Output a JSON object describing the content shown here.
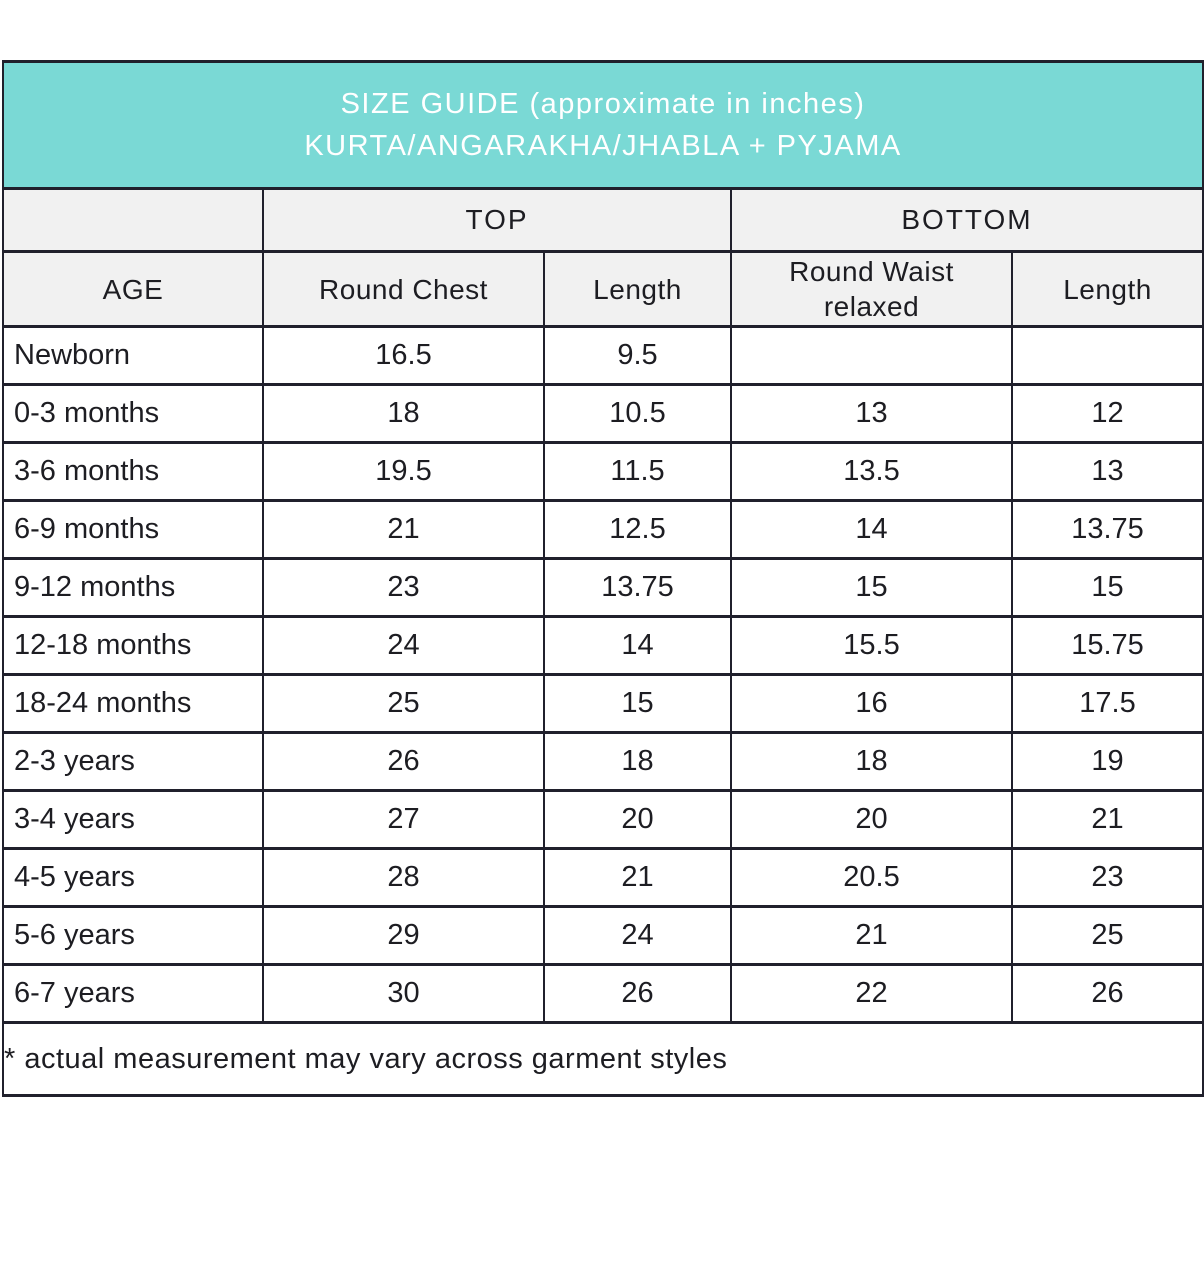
{
  "header": {
    "title_line1": "SIZE GUIDE (approximate in inches)",
    "title_line2": "KURTA/ANGARAKHA/JHABLA + PYJAMA"
  },
  "columns": {
    "group_top": "TOP",
    "group_bottom": "BOTTOM",
    "age": "AGE",
    "round_chest": "Round Chest",
    "top_length": "Length",
    "round_waist": "Round Waist relaxed",
    "bottom_length": "Length"
  },
  "rows": [
    {
      "age": "Newborn",
      "round_chest": "16.5",
      "top_length": "9.5",
      "round_waist": "",
      "bottom_length": ""
    },
    {
      "age": "0-3 months",
      "round_chest": "18",
      "top_length": "10.5",
      "round_waist": "13",
      "bottom_length": "12"
    },
    {
      "age": "3-6 months",
      "round_chest": "19.5",
      "top_length": "11.5",
      "round_waist": "13.5",
      "bottom_length": "13"
    },
    {
      "age": "6-9 months",
      "round_chest": "21",
      "top_length": "12.5",
      "round_waist": "14",
      "bottom_length": "13.75"
    },
    {
      "age": "9-12 months",
      "round_chest": "23",
      "top_length": "13.75",
      "round_waist": "15",
      "bottom_length": "15"
    },
    {
      "age": "12-18 months",
      "round_chest": "24",
      "top_length": "14",
      "round_waist": "15.5",
      "bottom_length": "15.75"
    },
    {
      "age": "18-24 months",
      "round_chest": "25",
      "top_length": "15",
      "round_waist": "16",
      "bottom_length": "17.5"
    },
    {
      "age": "2-3 years",
      "round_chest": "26",
      "top_length": "18",
      "round_waist": "18",
      "bottom_length": "19"
    },
    {
      "age": "3-4 years",
      "round_chest": "27",
      "top_length": "20",
      "round_waist": "20",
      "bottom_length": "21"
    },
    {
      "age": "4-5 years",
      "round_chest": "28",
      "top_length": "21",
      "round_waist": "20.5",
      "bottom_length": "23"
    },
    {
      "age": "5-6 years",
      "round_chest": "29",
      "top_length": "24",
      "round_waist": "21",
      "bottom_length": "25"
    },
    {
      "age": "6-7 years",
      "round_chest": "30",
      "top_length": "26",
      "round_waist": "22",
      "bottom_length": "26"
    }
  ],
  "footnote": "* actual measurement may vary across garment styles",
  "colors": {
    "title_bg": "#7ad9d5",
    "title_text": "#ffffff",
    "header_bg": "#f1f1f1",
    "border": "#20202c",
    "text": "#1d1d22"
  }
}
